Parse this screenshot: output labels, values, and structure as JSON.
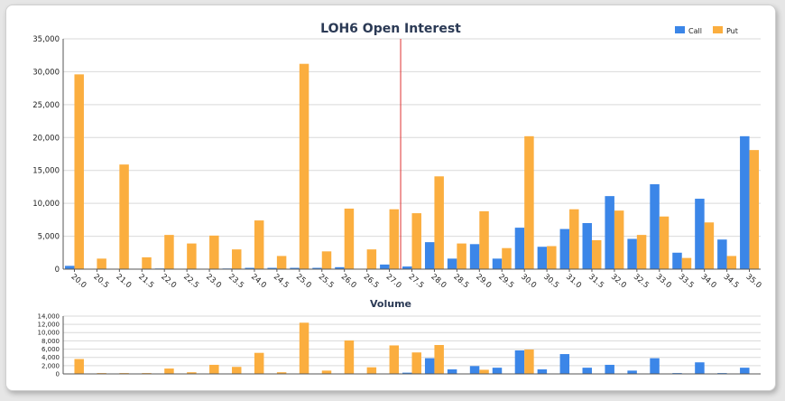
{
  "chart_data": [
    {
      "type": "bar",
      "title": "LOH6 Open Interest",
      "categories": [
        "20.0",
        "20.5",
        "21.0",
        "21.5",
        "22.0",
        "22.5",
        "23.0",
        "23.5",
        "24.0",
        "24.5",
        "25.0",
        "25.5",
        "26.0",
        "26.5",
        "27.0",
        "27.5",
        "28.0",
        "28.5",
        "29.0",
        "29.5",
        "30.0",
        "30.5",
        "31.0",
        "31.5",
        "32.0",
        "32.5",
        "33.0",
        "33.5",
        "34.0",
        "34.5",
        "35.0"
      ],
      "series": [
        {
          "name": "Call",
          "color": "#3b86e8",
          "values": [
            500,
            0,
            0,
            0,
            100,
            0,
            0,
            100,
            200,
            200,
            200,
            200,
            300,
            0,
            700,
            400,
            4100,
            1600,
            3800,
            1600,
            6300,
            3400,
            6100,
            7000,
            11100,
            4600,
            12900,
            2500,
            10700,
            4500,
            20200
          ]
        },
        {
          "name": "Put",
          "color": "#fbae3f",
          "values": [
            29600,
            1600,
            15900,
            1800,
            5200,
            3900,
            5100,
            3000,
            7400,
            2000,
            31200,
            2700,
            9200,
            3000,
            9100,
            8500,
            14100,
            3900,
            8800,
            3200,
            20200,
            3500,
            9100,
            4400,
            8900,
            5200,
            8000,
            1700,
            7100,
            2000,
            18100
          ]
        }
      ],
      "ylim": [
        0,
        35000
      ],
      "yticks": [
        "0",
        "5,000",
        "10,000",
        "15,000",
        "20,000",
        "25,000",
        "30,000",
        "35,000"
      ],
      "marker_after_category": "27.0",
      "legend": "top-right",
      "grid": true
    },
    {
      "type": "bar",
      "title": "Volume",
      "categories": [
        "20.0",
        "20.5",
        "21.0",
        "21.5",
        "22.0",
        "22.5",
        "23.0",
        "23.5",
        "24.0",
        "24.5",
        "25.0",
        "25.5",
        "26.0",
        "26.5",
        "27.0",
        "27.5",
        "28.0",
        "28.5",
        "29.0",
        "29.5",
        "30.0",
        "30.5",
        "31.0",
        "31.5",
        "32.0",
        "32.5",
        "33.0",
        "33.5",
        "34.0",
        "34.5",
        "35.0"
      ],
      "series": [
        {
          "name": "Call",
          "color": "#3b86e8",
          "values": [
            0,
            0,
            0,
            0,
            0,
            0,
            0,
            0,
            0,
            0,
            0,
            0,
            0,
            0,
            0,
            300,
            3800,
            1100,
            1900,
            1500,
            5700,
            1100,
            4800,
            1500,
            2200,
            800,
            3800,
            200,
            2800,
            200,
            1500
          ]
        },
        {
          "name": "Put",
          "color": "#fbae3f",
          "values": [
            3600,
            200,
            200,
            200,
            1300,
            400,
            2200,
            1700,
            5100,
            400,
            12400,
            800,
            8100,
            1600,
            6900,
            5200,
            7000,
            0,
            1000,
            0,
            5900,
            0,
            0,
            0,
            0,
            0,
            0,
            0,
            0,
            0,
            0
          ]
        }
      ],
      "ylim": [
        0,
        14000
      ],
      "yticks": [
        "0",
        "2,000",
        "4,000",
        "6,000",
        "8,000",
        "10,000",
        "12,000",
        "14,000"
      ],
      "grid": true
    }
  ]
}
